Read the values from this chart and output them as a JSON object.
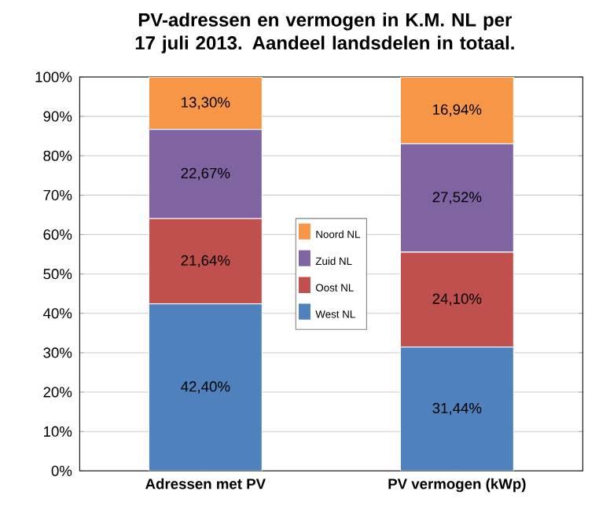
{
  "chart_data": {
    "type": "bar",
    "stacked": true,
    "title": "PV-adressen en vermogen in K.M. NL per 17 juli 2013. Aandeel landsdelen in totaal.",
    "categories": [
      "Adressen met PV",
      "PV vermogen (kWp)"
    ],
    "series": [
      {
        "name": "West NL",
        "color": "#4f81bd",
        "values": [
          42.4,
          31.44
        ],
        "value_labels": [
          "42,40%",
          "31,44%"
        ]
      },
      {
        "name": "Oost NL",
        "color": "#c0504d",
        "values": [
          21.64,
          24.1
        ],
        "value_labels": [
          "21,64%",
          "24,10%"
        ]
      },
      {
        "name": "Zuid NL",
        "color": "#8064a2",
        "values": [
          22.67,
          27.52
        ],
        "value_labels": [
          "22,67%",
          "27,52%"
        ]
      },
      {
        "name": "Noord NL",
        "color": "#f79646",
        "values": [
          13.3,
          16.94
        ],
        "value_labels": [
          "13,30%",
          "16,94%"
        ]
      }
    ],
    "ylim": [
      0,
      100
    ],
    "yticks": [
      {
        "value": 0,
        "label": "0%"
      },
      {
        "value": 10,
        "label": "10%"
      },
      {
        "value": 20,
        "label": "20%"
      },
      {
        "value": 30,
        "label": "30%"
      },
      {
        "value": 40,
        "label": "40%"
      },
      {
        "value": 50,
        "label": "50%"
      },
      {
        "value": 60,
        "label": "60%"
      },
      {
        "value": 70,
        "label": "70%"
      },
      {
        "value": 80,
        "label": "80%"
      },
      {
        "value": 90,
        "label": "90%"
      },
      {
        "value": 100,
        "label": "100%"
      }
    ],
    "grid": "y",
    "legend": "center"
  }
}
